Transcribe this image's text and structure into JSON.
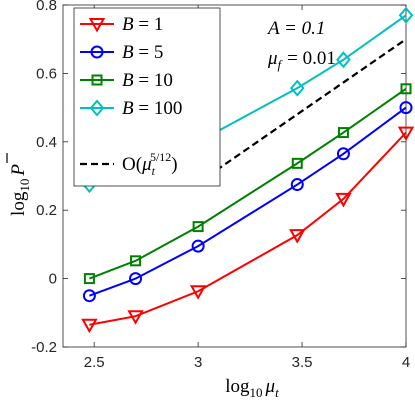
{
  "chart_data": {
    "type": "line",
    "xlabel_base": "log",
    "xlabel_sub": "10",
    "xlabel_var": "μ",
    "xlabel_var_sub": "t",
    "ylabel_base": "log",
    "ylabel_sub": "10",
    "ylabel_var": "P",
    "xlim": [
      2.35,
      4.0
    ],
    "ylim": [
      -0.2,
      0.8
    ],
    "xticks": [
      2.5,
      3,
      3.5,
      4
    ],
    "xtick_labels": [
      "2.5",
      "3",
      "3.5",
      "4"
    ],
    "yticks": [
      -0.2,
      0,
      0.2,
      0.4,
      0.6,
      0.8
    ],
    "ytick_labels": [
      "-0.2",
      "0",
      "0.2",
      "0.4",
      "0.6",
      "0.8"
    ],
    "grid": false,
    "legend_position": "top-left",
    "annotations": [
      {
        "name": "A",
        "text": "A = 0.1"
      },
      {
        "name": "μ",
        "sub": "f",
        "text": "= 0.01"
      }
    ],
    "series": [
      {
        "name": "B = 1",
        "var": "B",
        "value_label": "1",
        "marker": "triangle-down",
        "color": "#ff0000",
        "x": [
          2.477,
          2.699,
          3.0,
          3.477,
          3.699,
          4.0
        ],
        "y": [
          -0.135,
          -0.11,
          -0.037,
          0.127,
          0.233,
          0.427
        ]
      },
      {
        "name": "B = 5",
        "var": "B",
        "value_label": "5",
        "marker": "circle",
        "color": "#0000ff",
        "x": [
          2.477,
          2.699,
          3.0,
          3.477,
          3.699,
          4.0
        ],
        "y": [
          -0.05,
          0.0,
          0.095,
          0.275,
          0.365,
          0.5
        ]
      },
      {
        "name": "B = 10",
        "var": "B",
        "value_label": "10",
        "marker": "square",
        "color": "#008000",
        "x": [
          2.477,
          2.699,
          3.0,
          3.477,
          3.699,
          4.0
        ],
        "y": [
          0.0,
          0.052,
          0.152,
          0.337,
          0.427,
          0.555
        ]
      },
      {
        "name": "B = 100",
        "var": "B",
        "value_label": "100",
        "marker": "diamond",
        "color": "#00bfbf",
        "x": [
          2.477,
          2.699,
          3.0,
          3.477,
          3.699,
          4.0
        ],
        "y": [
          0.275,
          0.327,
          0.4,
          0.557,
          0.64,
          0.77
        ]
      }
    ],
    "reference_line": {
      "name": "O(μ_t^(5/12))",
      "prefix": "O(",
      "var": "μ",
      "var_sub": "t",
      "exponent": "5/12",
      "suffix": ")",
      "color": "#000000",
      "dash": "dashed",
      "x": [
        3.0,
        4.0
      ],
      "y": [
        0.28,
        0.7
      ]
    }
  }
}
